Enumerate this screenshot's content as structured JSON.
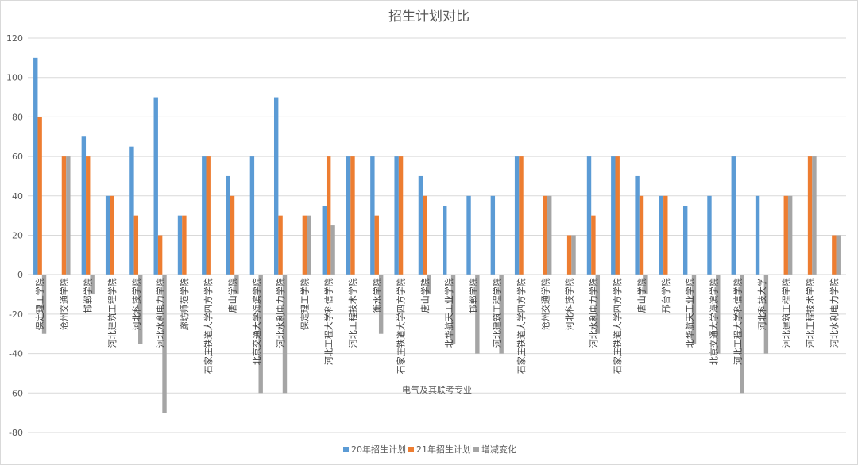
{
  "chart_data": {
    "type": "bar",
    "title": "招生计划对比",
    "xlabel": "电气及其联考专业",
    "ylabel": "",
    "ylim": [
      -80,
      120
    ],
    "yticks": [
      -80,
      -60,
      -40,
      -20,
      0,
      20,
      40,
      60,
      80,
      100,
      120
    ],
    "grid": true,
    "legend_position": "bottom",
    "categories": [
      "保定理工学院",
      "沧州交通学院",
      "邯郸学院",
      "河北建筑工程学院",
      "河北科技学院",
      "河北水利电力学院",
      "廊坊师范学院",
      "石家庄铁道大学四方学院",
      "唐山学院",
      "北京交通大学海滨学院",
      "河北水利电力学院",
      "保定理工学院",
      "河北工程大学科信学院",
      "河北工程技术学院",
      "衡水学院",
      "石家庄铁道大学四方学院",
      "唐山学院",
      "北华航天工业学院",
      "邯郸学院",
      "河北建筑工程学院",
      "石家庄铁道大学四方学院",
      "沧州交通学院",
      "河北科技学院",
      "河北水利电力学院",
      "石家庄铁道大学四方学院",
      "唐山学院",
      "邢台学院",
      "北华航天工业学院",
      "北京交通大学海滨学院",
      "河北工程大学科信学院",
      "河北科技大学",
      "河北建筑工程学院",
      "河北工程技术学院",
      "河北水利电力学院"
    ],
    "series": [
      {
        "name": "20年招生计划",
        "color": "#5b9bd5",
        "values": [
          110,
          0,
          70,
          40,
          65,
          90,
          30,
          60,
          50,
          60,
          90,
          0,
          35,
          60,
          60,
          60,
          50,
          35,
          40,
          40,
          60,
          0,
          0,
          60,
          60,
          50,
          40,
          35,
          40,
          60,
          40,
          0,
          0,
          0
        ]
      },
      {
        "name": "21年招生计划",
        "color": "#ed7d31",
        "values": [
          80,
          60,
          60,
          40,
          30,
          20,
          30,
          60,
          40,
          0,
          30,
          30,
          60,
          60,
          30,
          60,
          40,
          0,
          0,
          0,
          60,
          40,
          20,
          30,
          60,
          40,
          40,
          0,
          0,
          0,
          0,
          40,
          60,
          20
        ]
      },
      {
        "name": "增减变化",
        "color": "#a5a5a5",
        "values": [
          -30,
          60,
          -10,
          0,
          -35,
          -70,
          0,
          0,
          -10,
          -60,
          -60,
          30,
          25,
          0,
          -30,
          0,
          -10,
          -35,
          -40,
          -40,
          0,
          40,
          20,
          -30,
          0,
          -10,
          0,
          -35,
          -40,
          -60,
          -40,
          40,
          60,
          20
        ]
      }
    ]
  }
}
